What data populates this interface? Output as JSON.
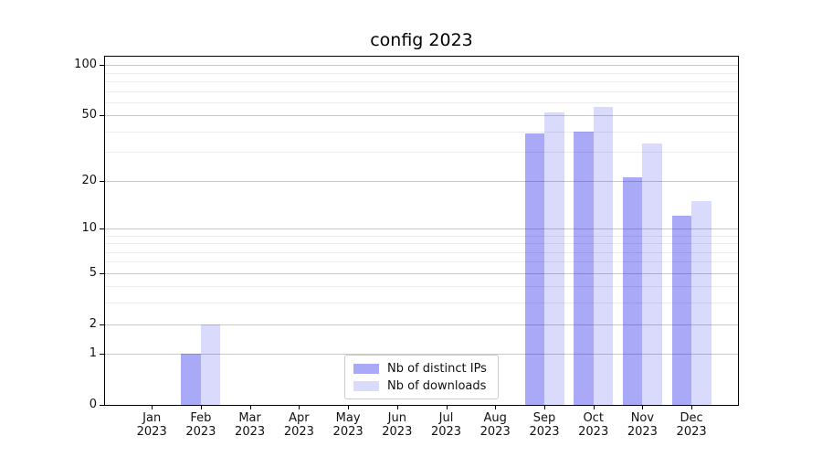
{
  "title": "config 2023",
  "chart_data": {
    "type": "bar",
    "title": "config 2023",
    "x_tick_months": [
      "Jan",
      "Feb",
      "Mar",
      "Apr",
      "May",
      "Jun",
      "Jul",
      "Aug",
      "Sep",
      "Oct",
      "Nov",
      "Dec"
    ],
    "x_tick_year": "2023",
    "categories": [
      "Jan 2023",
      "Feb 2023",
      "Mar 2023",
      "Apr 2023",
      "May 2023",
      "Jun 2023",
      "Jul 2023",
      "Aug 2023",
      "Sep 2023",
      "Oct 2023",
      "Nov 2023",
      "Dec 2023"
    ],
    "series": [
      {
        "name": "Nb of distinct IPs",
        "color": "#a9a9f8",
        "fill": "rgba(10,10,235,0.35)",
        "values": [
          0,
          1,
          0,
          0,
          0,
          0,
          0,
          0,
          39,
          40,
          21,
          12
        ]
      },
      {
        "name": "Nb of downloads",
        "color": "#dadafc",
        "fill": "rgba(10,10,235,0.15)",
        "values": [
          0,
          2,
          0,
          0,
          0,
          0,
          0,
          0,
          52,
          56,
          34,
          15
        ]
      }
    ],
    "yscale": "log1p",
    "ylim": [
      0,
      111
    ],
    "ytick_values": [
      0,
      1,
      2,
      5,
      10,
      20,
      50,
      100
    ],
    "ytick_labels": [
      "0",
      "1",
      "2",
      "5",
      "10",
      "20",
      "50",
      "100"
    ],
    "minor_gridline_values": [
      3,
      4,
      6,
      7,
      8,
      9,
      30,
      40,
      60,
      70,
      80,
      90
    ],
    "grid": true,
    "legend_position": "lower center",
    "spine_color": "#000000",
    "major_grid_color": "#c9c9c9",
    "minor_grid_color": "#ececec"
  }
}
